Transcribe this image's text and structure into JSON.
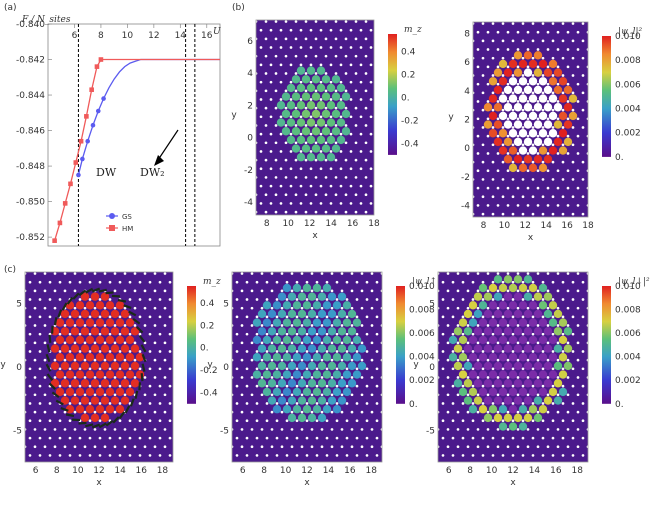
{
  "panels": {
    "a": "(a)",
    "b": "(b)",
    "c": "(c)"
  },
  "colors": {
    "gs": "#5b5bf0",
    "hm": "#f05a5a",
    "site": "#4b1a8c",
    "hole": "#ffffff",
    "arrow_dark": "#1a2a1a"
  },
  "chart_data": [
    {
      "id": "a",
      "type": "line",
      "title": "",
      "ylabel": "F / N_sites",
      "xlabel": "U",
      "xlim": [
        4,
        17
      ],
      "ylim": [
        -0.8525,
        -0.84
      ],
      "xticks": [
        "6",
        "8",
        "10",
        "12",
        "14",
        "16"
      ],
      "yticks": [
        "-0.840",
        "-0.842",
        "-0.844",
        "-0.846",
        "-0.848",
        "-0.850",
        "-0.852"
      ],
      "vlines": [
        6.3,
        14.4,
        15.1
      ],
      "annotations": [
        "DW",
        "DW₂"
      ],
      "series": [
        {
          "name": "GS",
          "x": [
            6.3,
            6.6,
            7.0,
            7.4,
            7.8,
            8.2,
            8.6,
            9.0,
            9.4,
            9.8,
            10.2,
            10.6,
            11.0,
            11.4,
            11.8,
            12.2,
            12.6,
            13.0,
            13.4,
            13.8,
            14.2,
            14.6,
            15.0,
            15.4,
            16.0,
            17.0
          ],
          "y": [
            -0.8485,
            -0.8476,
            -0.8466,
            -0.8457,
            -0.8449,
            -0.8442,
            -0.8436,
            -0.8431,
            -0.8427,
            -0.8424,
            -0.8422,
            -0.8421,
            -0.842,
            -0.842,
            -0.842,
            -0.842,
            -0.842,
            -0.842,
            -0.842,
            -0.842,
            -0.842,
            -0.842,
            -0.842,
            -0.842,
            -0.842,
            -0.842
          ]
        },
        {
          "name": "HM",
          "x": [
            4.5,
            4.9,
            5.3,
            5.7,
            6.1,
            6.5,
            6.9,
            7.3,
            7.7,
            8.0,
            8.5,
            9.5,
            10.5,
            11.5,
            12.5,
            13.5,
            14.5,
            15.5,
            16.5,
            17.0
          ],
          "y": [
            -0.8522,
            -0.8512,
            -0.8501,
            -0.849,
            -0.8478,
            -0.8466,
            -0.8452,
            -0.8437,
            -0.8424,
            -0.842,
            -0.842,
            -0.842,
            -0.842,
            -0.842,
            -0.842,
            -0.842,
            -0.842,
            -0.842,
            -0.842,
            -0.842
          ]
        }
      ],
      "legend": [
        "GS",
        "HM"
      ]
    },
    {
      "id": "b-left",
      "type": "heatmap",
      "xlabel": "x",
      "ylabel": "y",
      "xlim": [
        7,
        18
      ],
      "ylim": [
        -4.8,
        7.3
      ],
      "xticks": [
        "8",
        "10",
        "12",
        "14",
        "16",
        "18"
      ],
      "yticks": [
        "6",
        "4",
        "2",
        "0",
        "-2",
        "-4"
      ],
      "colorbar_label": "m_z",
      "colorbar_ticks": [
        "0.4",
        "0.2",
        "0.",
        "-0.2",
        "-0.4"
      ],
      "colorbar_range": [
        -0.5,
        0.55
      ]
    },
    {
      "id": "b-right",
      "type": "heatmap",
      "xlabel": "x",
      "ylabel": "y",
      "xlim": [
        7,
        18
      ],
      "ylim": [
        -4.8,
        8.8
      ],
      "xticks": [
        "8",
        "10",
        "12",
        "14",
        "16",
        "18"
      ],
      "yticks": [
        "8",
        "6",
        "4",
        "2",
        "0",
        "-2",
        "-4"
      ],
      "colorbar_label": "|ψ_l|²",
      "colorbar_ticks": [
        "0.010",
        "0.008",
        "0.006",
        "0.004",
        "0.002",
        "0."
      ],
      "colorbar_range": [
        0,
        0.01
      ]
    },
    {
      "id": "c-left",
      "type": "heatmap",
      "xlabel": "x",
      "ylabel": "y",
      "xlim": [
        5,
        19
      ],
      "ylim": [
        -7.5,
        7.5
      ],
      "xticks": [
        "6",
        "8",
        "10",
        "12",
        "14",
        "16",
        "18"
      ],
      "yticks": [
        "5",
        "0",
        "-5"
      ],
      "colorbar_label": "m_z",
      "colorbar_ticks": [
        "0.4",
        "0.2",
        "0.",
        "-0.2",
        "-0.4"
      ],
      "colorbar_range": [
        -0.5,
        0.55
      ]
    },
    {
      "id": "c-mid",
      "type": "heatmap",
      "xlabel": "x",
      "ylabel": "y",
      "xlim": [
        5,
        19
      ],
      "ylim": [
        -7.5,
        7.5
      ],
      "xticks": [
        "6",
        "8",
        "10",
        "12",
        "14",
        "16",
        "18"
      ],
      "yticks": [
        "5",
        "0",
        "-5"
      ],
      "colorbar_label": "|ψ_l↑|²",
      "colorbar_ticks": [
        "0.010",
        "0.008",
        "0.006",
        "0.004",
        "0.002",
        "0."
      ],
      "colorbar_range": [
        0,
        0.01
      ]
    },
    {
      "id": "c-right",
      "type": "heatmap",
      "xlabel": "x",
      "ylabel": "y",
      "xlim": [
        5,
        19
      ],
      "ylim": [
        -7.5,
        7.5
      ],
      "xticks": [
        "6",
        "8",
        "10",
        "12",
        "14",
        "16",
        "18"
      ],
      "yticks": [
        "5",
        "0",
        "-5"
      ],
      "colorbar_label": "|ψ_l↓|²",
      "colorbar_ticks": [
        "0.010",
        "0.008",
        "0.006",
        "0.004",
        "0.002",
        "0."
      ],
      "colorbar_range": [
        0,
        0.01
      ]
    }
  ]
}
